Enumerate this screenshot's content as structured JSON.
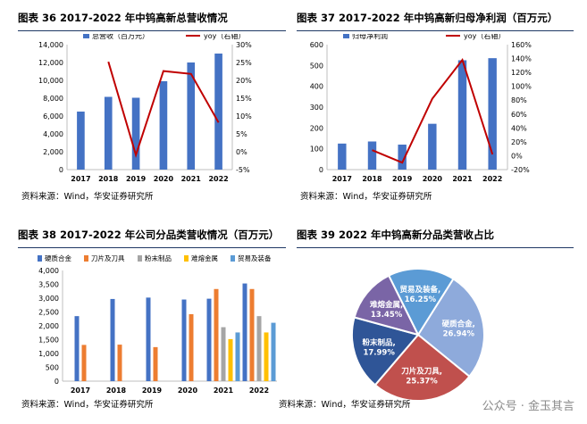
{
  "watermark": "公众号 · 金玉其言",
  "panels": [
    {
      "title": "图表 36 2017-2022 年中钨高新总营收情况",
      "source": "资料来源：Wind，华安证券研究所"
    },
    {
      "title": "图表 37 2017-2022 年中钨高新归母净利润（百万元）",
      "source": "资料来源：Wind，华安证券研究所"
    },
    {
      "title": "图表 38 2017-2022 年公司分品类营收情况（百万元）",
      "source": "资料来源：Wind，华安证券研究所"
    },
    {
      "title": "图表 39 2022 年中钨高新分品类营收占比",
      "source": "资料来源：Wind，华安证券研究所"
    }
  ],
  "chart_data": [
    {
      "type": "bar",
      "categories": [
        "2017",
        "2018",
        "2019",
        "2020",
        "2021",
        "2022"
      ],
      "series": [
        {
          "name": "总营收（百万元）",
          "kind": "bar",
          "axis": "left",
          "color": "#4472c4",
          "values": [
            6500,
            8150,
            8050,
            9900,
            12000,
            13000
          ]
        },
        {
          "name": "yoy（右轴）",
          "kind": "line",
          "axis": "right",
          "color": "#c00000",
          "values": [
            null,
            25.2,
            -0.9,
            22.6,
            21.8,
            8.2
          ]
        }
      ],
      "ylim": [
        0,
        14000
      ],
      "yticks": [
        "0",
        "2,000",
        "4,000",
        "6,000",
        "8,000",
        "10,000",
        "12,000",
        "14,000"
      ],
      "y2lim": [
        -5,
        30
      ],
      "y2ticks": [
        "-5%",
        "0%",
        "5%",
        "10%",
        "15%",
        "20%",
        "25%",
        "30%"
      ],
      "legend": "top"
    },
    {
      "type": "bar",
      "categories": [
        "2017",
        "2018",
        "2019",
        "2020",
        "2021",
        "2022"
      ],
      "series": [
        {
          "name": "归母净利润",
          "kind": "bar",
          "axis": "left",
          "color": "#4472c4",
          "values": [
            125,
            135,
            120,
            220,
            525,
            535
          ]
        },
        {
          "name": "yoy（右轴）",
          "kind": "line",
          "axis": "right",
          "color": "#c00000",
          "values": [
            null,
            8,
            -10,
            82,
            138,
            2
          ]
        }
      ],
      "ylim": [
        0,
        600
      ],
      "yticks": [
        "0",
        "100",
        "200",
        "300",
        "400",
        "500",
        "600"
      ],
      "y2lim": [
        -20,
        160
      ],
      "y2ticks": [
        "-20%",
        "0%",
        "20%",
        "40%",
        "60%",
        "80%",
        "100%",
        "120%",
        "140%",
        "160%"
      ],
      "legend": "top"
    },
    {
      "type": "bar",
      "categories": [
        "2017",
        "2018",
        "2019",
        "2020",
        "2021",
        "2022"
      ],
      "series": [
        {
          "name": "硬质合金",
          "color": "#4472c4",
          "values": [
            2350,
            2970,
            3020,
            2950,
            2980,
            3530
          ]
        },
        {
          "name": "刀片及刀具",
          "color": "#ed7d31",
          "values": [
            1310,
            1320,
            1230,
            2420,
            3330,
            3330
          ]
        },
        {
          "name": "粉末制品",
          "color": "#a5a5a5",
          "values": [
            null,
            null,
            null,
            null,
            1950,
            2350
          ]
        },
        {
          "name": "难熔金属",
          "color": "#ffc000",
          "values": [
            null,
            null,
            null,
            null,
            1520,
            1760
          ]
        },
        {
          "name": "贸易及装备",
          "color": "#5b9bd5",
          "values": [
            null,
            null,
            null,
            null,
            1760,
            2110
          ]
        }
      ],
      "ylim": [
        0,
        4000
      ],
      "yticks": [
        "0",
        "500",
        "1,000",
        "1,500",
        "2,000",
        "2,500",
        "3,000",
        "3,500",
        "4,000"
      ],
      "legend": "top"
    },
    {
      "type": "pie",
      "slices": [
        {
          "name": "硬质合金",
          "label": "硬质合金,",
          "pct": "26.94%",
          "value": 26.94,
          "color": "#8eaadb"
        },
        {
          "name": "刀片及刀具",
          "label": "刀片及刀具,",
          "pct": "25.37%",
          "value": 25.37,
          "color": "#c0504d"
        },
        {
          "name": "粉末制品",
          "label": "粉末制品,",
          "pct": "17.99%",
          "value": 17.99,
          "color": "#2f5597"
        },
        {
          "name": "难熔金属",
          "label": "难熔金属,",
          "pct": "13.45%",
          "value": 13.45,
          "color": "#7a65a6"
        },
        {
          "name": "贸易及装备",
          "label": "贸易及装备,",
          "pct": "16.25%",
          "value": 16.25,
          "color": "#5b9bd5"
        }
      ]
    }
  ]
}
